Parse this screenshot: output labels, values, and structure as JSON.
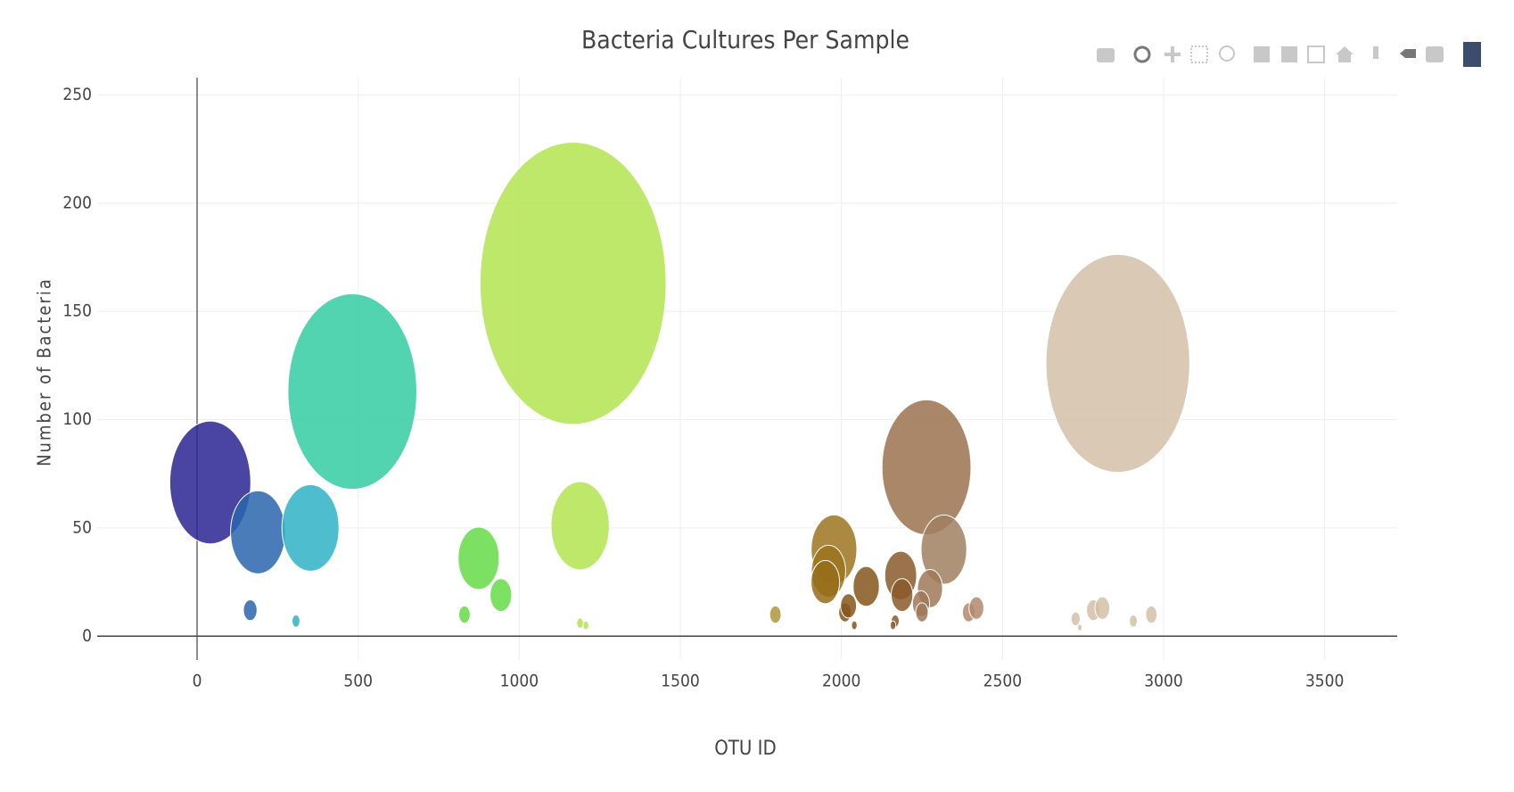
{
  "chart_data": {
    "type": "bubble",
    "title": "Bacteria Cultures Per Sample",
    "x_label": "OTU ID",
    "y_label": "Number of Bacteria",
    "x": [
      41,
      189,
      165,
      352,
      482,
      307,
      874,
      943,
      830,
      1167,
      1189,
      1189,
      1207,
      1795,
      1977,
      1960,
      1950,
      2011,
      2022,
      2077,
      2040,
      2184,
      2188,
      2264,
      2318,
      2275,
      2247,
      2250,
      2167,
      2160,
      2395,
      2419,
      2858,
      2727,
      2740,
      2782,
      2810,
      2906,
      2962
    ],
    "values": [
      71,
      48,
      12,
      50,
      113,
      7,
      36,
      19,
      10,
      163,
      51,
      6,
      5,
      10,
      40,
      30,
      25,
      11,
      14,
      23,
      5,
      28,
      19,
      78,
      40,
      22,
      15,
      11,
      7,
      5,
      11,
      13,
      126,
      8,
      4,
      12,
      13,
      7,
      10
    ],
    "sizes": [
      71,
      48,
      12,
      50,
      113,
      7,
      36,
      19,
      10,
      163,
      51,
      6,
      5,
      10,
      40,
      30,
      25,
      11,
      14,
      23,
      5,
      28,
      19,
      78,
      40,
      22,
      15,
      11,
      7,
      5,
      11,
      13,
      126,
      8,
      4,
      12,
      13,
      7,
      10
    ],
    "colors": [
      "#2a2593",
      "#2a65ad",
      "#2a65ad",
      "#2fb3c6",
      "#33cca1",
      "#2fb3c6",
      "#65dc47",
      "#65dc47",
      "#65dc47",
      "#b2e44f",
      "#b2e44f",
      "#b2e44f",
      "#b2e44f",
      "#ad963c",
      "#9c7420",
      "#9c7420",
      "#956c18",
      "#85561c",
      "#85561c",
      "#85561c",
      "#85561c",
      "#8a5a2a",
      "#8a5a2a",
      "#9c7250",
      "#a08060",
      "#a07858",
      "#a07858",
      "#a07858",
      "#8a5a2a",
      "#8a5a2a",
      "#b08a6c",
      "#b08a6c",
      "#d2bfa8",
      "#d2bfa8",
      "#d2bfa8",
      "#d2bfa8",
      "#d2bfa8",
      "#d2bfa8",
      "#d2bfa8"
    ],
    "xlim": [
      -310,
      3725
    ],
    "ylim": [
      -11,
      258
    ],
    "xticks": [
      0,
      500,
      1000,
      1500,
      2000,
      2500,
      3000,
      3500
    ],
    "yticks": [
      0,
      50,
      100,
      150,
      200,
      250
    ],
    "grid": true
  }
}
